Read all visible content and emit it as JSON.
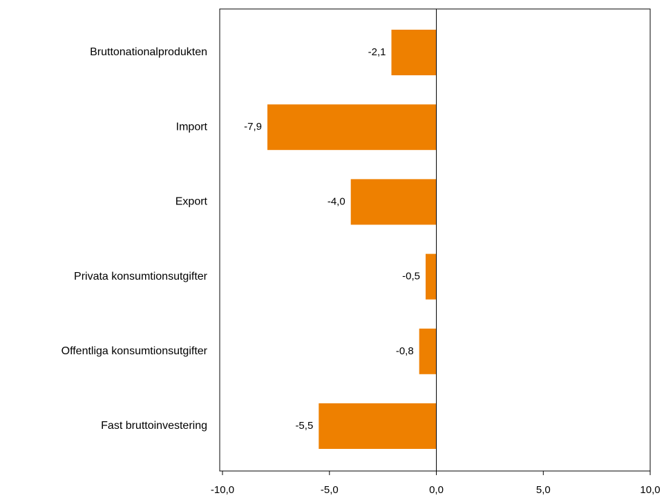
{
  "chart_data": {
    "type": "bar",
    "orientation": "horizontal",
    "categories": [
      "Bruttonationalprodukten",
      "Import",
      "Export",
      "Privata konsumtionsutgifter",
      "Offentliga konsumtionsutgifter",
      "Fast bruttoinvestering"
    ],
    "values": [
      -2.1,
      -7.9,
      -4.0,
      -0.5,
      -0.8,
      -5.5
    ],
    "value_labels": [
      "-2,1",
      "-7,9",
      "-4,0",
      "-0,5",
      "-0,8",
      "-5,5"
    ],
    "xlim": [
      -10,
      10
    ],
    "xticks": [
      -10,
      -5,
      0,
      5,
      10
    ],
    "xtick_labels": [
      "-10,0",
      "-5,0",
      "0,0",
      "5,0",
      "10,0"
    ],
    "bar_color": "#ee8000",
    "grid": false,
    "legend": "none"
  }
}
